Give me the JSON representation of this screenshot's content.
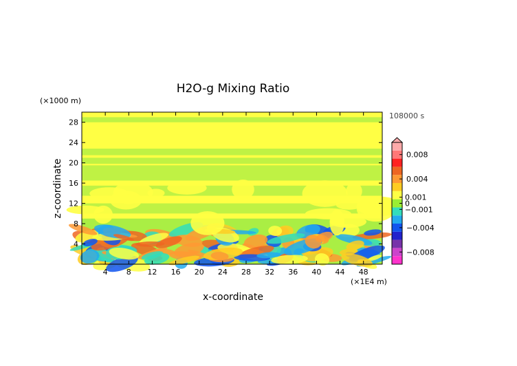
{
  "chart_data": {
    "type": "heatmap",
    "title": "H2O-g Mixing Ratio",
    "xlabel": "x-coordinate",
    "ylabel": "z-coordinate",
    "x_unit": "(×1E4 m)",
    "y_unit": "(×1000 m)",
    "time_label": "108000 s",
    "xlim": [
      0,
      51.2
    ],
    "ylim": [
      0,
      30
    ],
    "x_ticks": [
      "4",
      "8",
      "12",
      "16",
      "20",
      "24",
      "28",
      "32",
      "36",
      "40",
      "44",
      "48"
    ],
    "y_ticks": [
      "4",
      "8",
      "12",
      "16",
      "20",
      "24",
      "28"
    ],
    "colorbar": {
      "tick_labels": [
        "0.008",
        "0.004",
        "0.001",
        "0",
        "−0.001",
        "−0.004",
        "−0.008"
      ],
      "tick_values": [
        0.008,
        0.004,
        0.001,
        0,
        -0.001,
        -0.004,
        -0.008
      ],
      "range": [
        -0.01,
        0.01
      ],
      "colors": [
        "#ff33cc",
        "#cc44cc",
        "#7733aa",
        "#2222cc",
        "#1155ee",
        "#22aaee",
        "#33ddbb",
        "#99ee33",
        "#ffff44",
        "#ffcc22",
        "#ff9933",
        "#ee6622",
        "#ff2222",
        "#ff7777",
        "#ffaaaa"
      ]
    },
    "field_description": {
      "background": "near zero (yellow/green layered bands) above 8 km",
      "lower_layer": "mixed positive (orange) and negative (cyan/blue) anomalies below 8 km"
    }
  }
}
